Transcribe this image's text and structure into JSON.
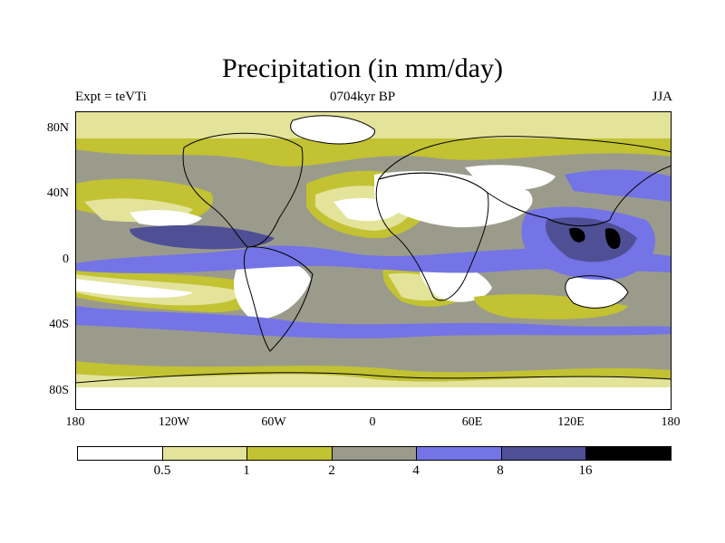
{
  "title": "Precipitation (in mm/day)",
  "subtitle_left": "Expt = teVTi",
  "subtitle_center": "0704kyr BP",
  "subtitle_right": "JJA",
  "y_labels": [
    "80N",
    "40N",
    "0",
    "40S",
    "80S"
  ],
  "x_labels": [
    "180",
    "120W",
    "60W",
    "0",
    "60E",
    "120E",
    "180"
  ],
  "colorbar": {
    "levels": [
      "0.5",
      "1",
      "2",
      "4",
      "8",
      "16"
    ],
    "colors": [
      "#ffffff",
      "#e3e39a",
      "#c2c232",
      "#9b9b8c",
      "#7474e6",
      "#4f4f96",
      "#000000"
    ]
  }
}
